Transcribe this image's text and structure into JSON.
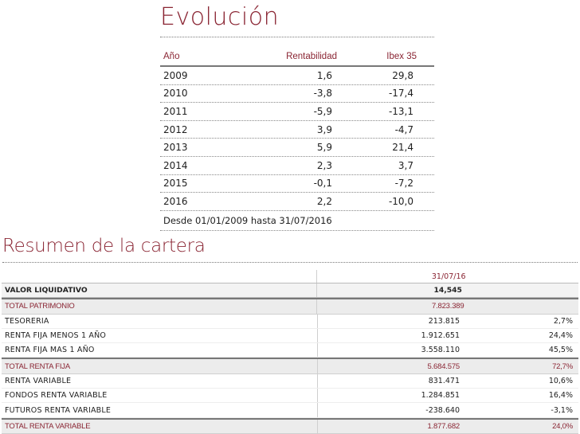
{
  "evolucion": {
    "title": "Evolución",
    "headers": {
      "year": "Año",
      "rentabilidad": "Rentabilidad",
      "ibex": "Ibex 35"
    },
    "rows": [
      {
        "year": "2009",
        "rentabilidad": "1,6",
        "ibex": "29,8"
      },
      {
        "year": "2010",
        "rentabilidad": "-3,8",
        "ibex": "-17,4"
      },
      {
        "year": "2011",
        "rentabilidad": "-5,9",
        "ibex": "-13,1"
      },
      {
        "year": "2012",
        "rentabilidad": "3,9",
        "ibex": "-4,7"
      },
      {
        "year": "2013",
        "rentabilidad": "5,9",
        "ibex": "21,4"
      },
      {
        "year": "2014",
        "rentabilidad": "2,3",
        "ibex": "3,7"
      },
      {
        "year": "2015",
        "rentabilidad": "-0,1",
        "ibex": "-7,2"
      },
      {
        "year": "2016",
        "rentabilidad": "2,2",
        "ibex": "-10,0"
      }
    ],
    "footer": "Desde 01/01/2009 hasta 31/07/2016"
  },
  "resumen": {
    "title": "Resumen de la cartera",
    "date": "31/07/16",
    "valor_liquidativo": {
      "label": "VALOR LIQUIDATIVO",
      "value": "14,545"
    },
    "total_patrimonio": {
      "label": "TOTAL PATRIMONIO",
      "value": "7.823.389"
    },
    "tesoreria": {
      "label": "TESORERIA",
      "amount": "213.815",
      "pct": "2,7%"
    },
    "rf_menos": {
      "label": "RENTA FIJA MENOS 1 AÑO",
      "amount": "1.912.651",
      "pct": "24,4%"
    },
    "rf_mas": {
      "label": "RENTA FIJA MAS 1 AÑO",
      "amount": "3.558.110",
      "pct": "45,5%"
    },
    "total_rf": {
      "label": "TOTAL RENTA FIJA",
      "amount": "5.684.575",
      "pct": "72,7%"
    },
    "rv": {
      "label": "RENTA VARIABLE",
      "amount": "831.471",
      "pct": "10,6%"
    },
    "fondos_rv": {
      "label": "FONDOS RENTA VARIABLE",
      "amount": "1.284.851",
      "pct": "16,4%"
    },
    "futuros_rv": {
      "label": "FUTUROS RENTA VARIABLE",
      "amount": "-238.640",
      "pct": "-3,1%"
    },
    "total_rv": {
      "label": "TOTAL RENTA VARIABLE",
      "amount": "1.877.682",
      "pct": "24,0%"
    }
  }
}
